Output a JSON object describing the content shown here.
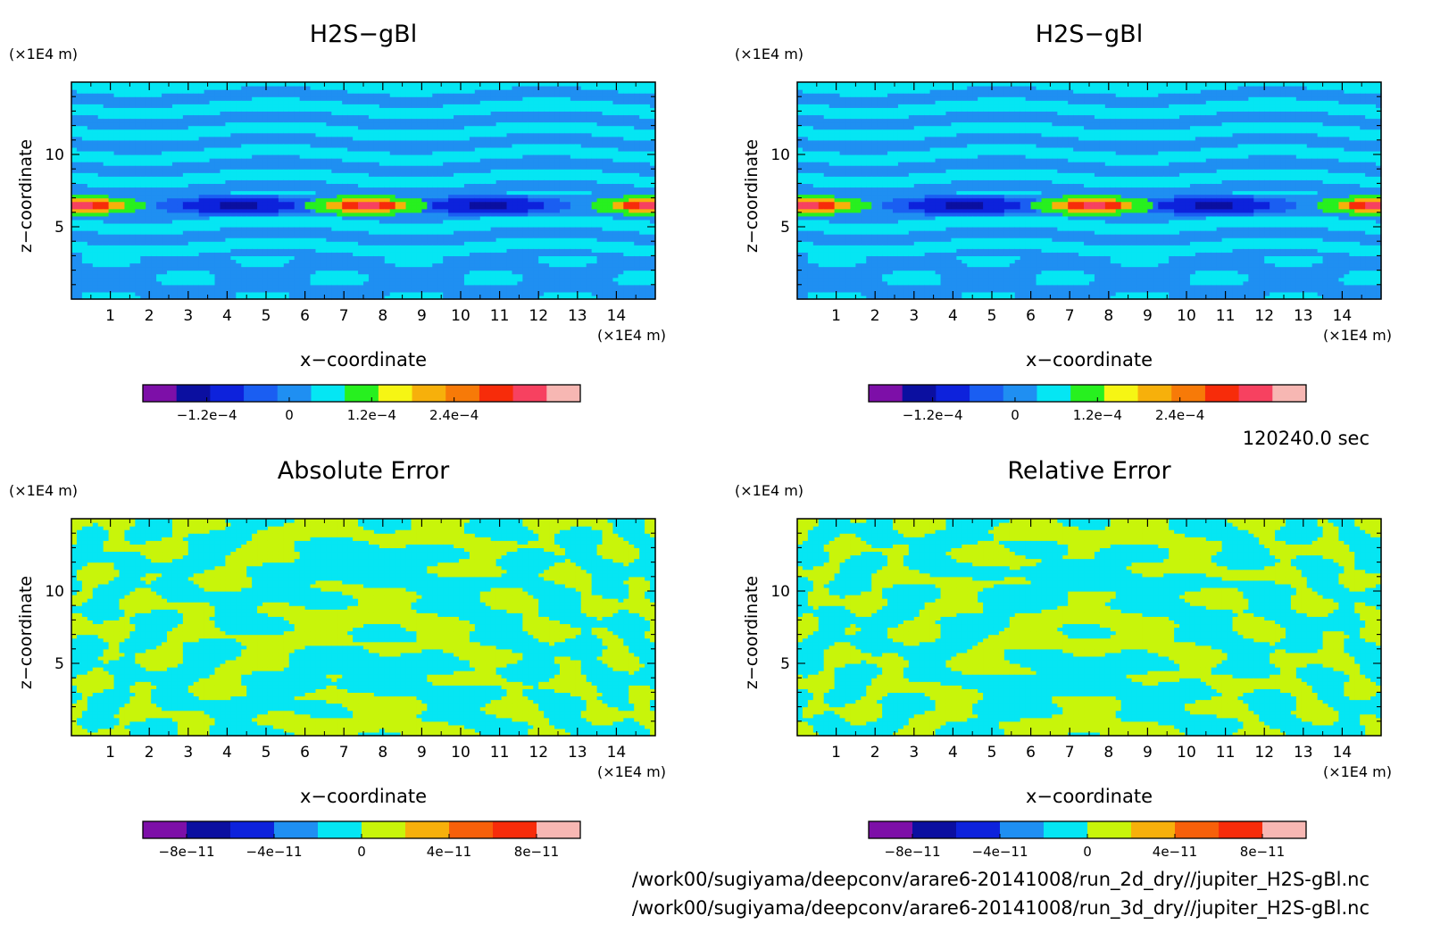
{
  "time_label": "120240.0 sec",
  "files": [
    "/work00/sugiyama/deepconv/arare6-20141008/run_2d_dry//jupiter_H2S-gBl.nc",
    "/work00/sugiyama/deepconv/arare6-20141008/run_3d_dry//jupiter_H2S-gBl.nc"
  ],
  "chart_data": [
    {
      "type": "heatmap",
      "title": "H2S−gBl",
      "xlabel": "x−coordinate",
      "ylabel": "z−coordinate",
      "x_unit": "(×1E4 m)",
      "y_unit": "(×1E4 m)",
      "xlim": [
        0,
        15
      ],
      "ylim": [
        0,
        15
      ],
      "x_ticks": [
        1,
        2,
        3,
        4,
        5,
        6,
        7,
        8,
        9,
        10,
        11,
        12,
        13,
        14
      ],
      "y_ticks": [
        5,
        10
      ],
      "field": "h2s",
      "colorbar": {
        "colors": [
          "#7d0fa8",
          "#0b0fa0",
          "#0d22dc",
          "#1a5ef2",
          "#1f8ff2",
          "#05e6f3",
          "#27f01f",
          "#f6f514",
          "#f7b00b",
          "#f77a08",
          "#f72c0a",
          "#f74160",
          "#f7b7b3"
        ],
        "ticks": [
          "−1.2e−4",
          "0",
          "1.2e−4",
          "2.4e−4"
        ]
      }
    },
    {
      "type": "heatmap",
      "title": "H2S−gBl",
      "xlabel": "x−coordinate",
      "ylabel": "z−coordinate",
      "x_unit": "(×1E4 m)",
      "y_unit": "(×1E4 m)",
      "xlim": [
        0,
        15
      ],
      "ylim": [
        0,
        15
      ],
      "x_ticks": [
        1,
        2,
        3,
        4,
        5,
        6,
        7,
        8,
        9,
        10,
        11,
        12,
        13,
        14
      ],
      "y_ticks": [
        5,
        10
      ],
      "field": "h2s",
      "colorbar": {
        "colors": [
          "#7d0fa8",
          "#0b0fa0",
          "#0d22dc",
          "#1a5ef2",
          "#1f8ff2",
          "#05e6f3",
          "#27f01f",
          "#f6f514",
          "#f7b00b",
          "#f77a08",
          "#f72c0a",
          "#f74160",
          "#f7b7b3"
        ],
        "ticks": [
          "−1.2e−4",
          "0",
          "1.2e−4",
          "2.4e−4"
        ]
      }
    },
    {
      "type": "heatmap",
      "title": "Absolute Error",
      "xlabel": "x−coordinate",
      "ylabel": "z−coordinate",
      "x_unit": "(×1E4 m)",
      "y_unit": "(×1E4 m)",
      "xlim": [
        0,
        15
      ],
      "ylim": [
        0,
        15
      ],
      "x_ticks": [
        1,
        2,
        3,
        4,
        5,
        6,
        7,
        8,
        9,
        10,
        11,
        12,
        13,
        14
      ],
      "y_ticks": [
        5,
        10
      ],
      "field": "error",
      "colorbar": {
        "colors": [
          "#7d0fa8",
          "#0b0fa0",
          "#0d22dc",
          "#1f8ff2",
          "#05e6f3",
          "#c8f50a",
          "#f7b00b",
          "#f7600a",
          "#f72c0a",
          "#f7b7b3"
        ],
        "ticks": [
          "−8e−11",
          "−4e−11",
          "0",
          "4e−11",
          "8e−11"
        ]
      }
    },
    {
      "type": "heatmap",
      "title": "Relative Error",
      "xlabel": "x−coordinate",
      "ylabel": "z−coordinate",
      "x_unit": "(×1E4 m)",
      "y_unit": "(×1E4 m)",
      "xlim": [
        0,
        15
      ],
      "ylim": [
        0,
        15
      ],
      "x_ticks": [
        1,
        2,
        3,
        4,
        5,
        6,
        7,
        8,
        9,
        10,
        11,
        12,
        13,
        14
      ],
      "y_ticks": [
        5,
        10
      ],
      "field": "error2",
      "colorbar": {
        "colors": [
          "#7d0fa8",
          "#0b0fa0",
          "#0d22dc",
          "#1f8ff2",
          "#05e6f3",
          "#c8f50a",
          "#f7b00b",
          "#f7600a",
          "#f72c0a",
          "#f7b7b3"
        ],
        "ticks": [
          "−8e−11",
          "−4e−11",
          "0",
          "4e−11",
          "8e−11"
        ]
      }
    }
  ]
}
